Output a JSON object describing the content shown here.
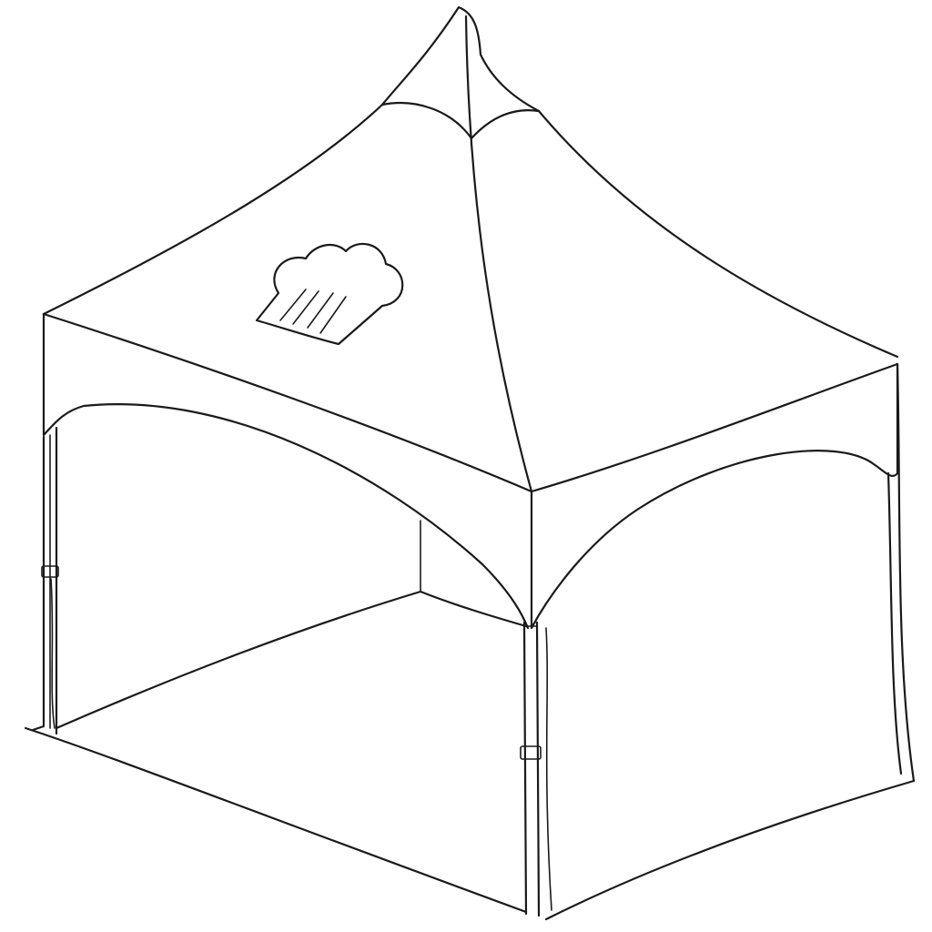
{
  "drawing": {
    "subject": "",
    "background_color": "#ffffff",
    "ink_color": "#1a1a1a",
    "logo_icon": "chef-hat-icon"
  }
}
